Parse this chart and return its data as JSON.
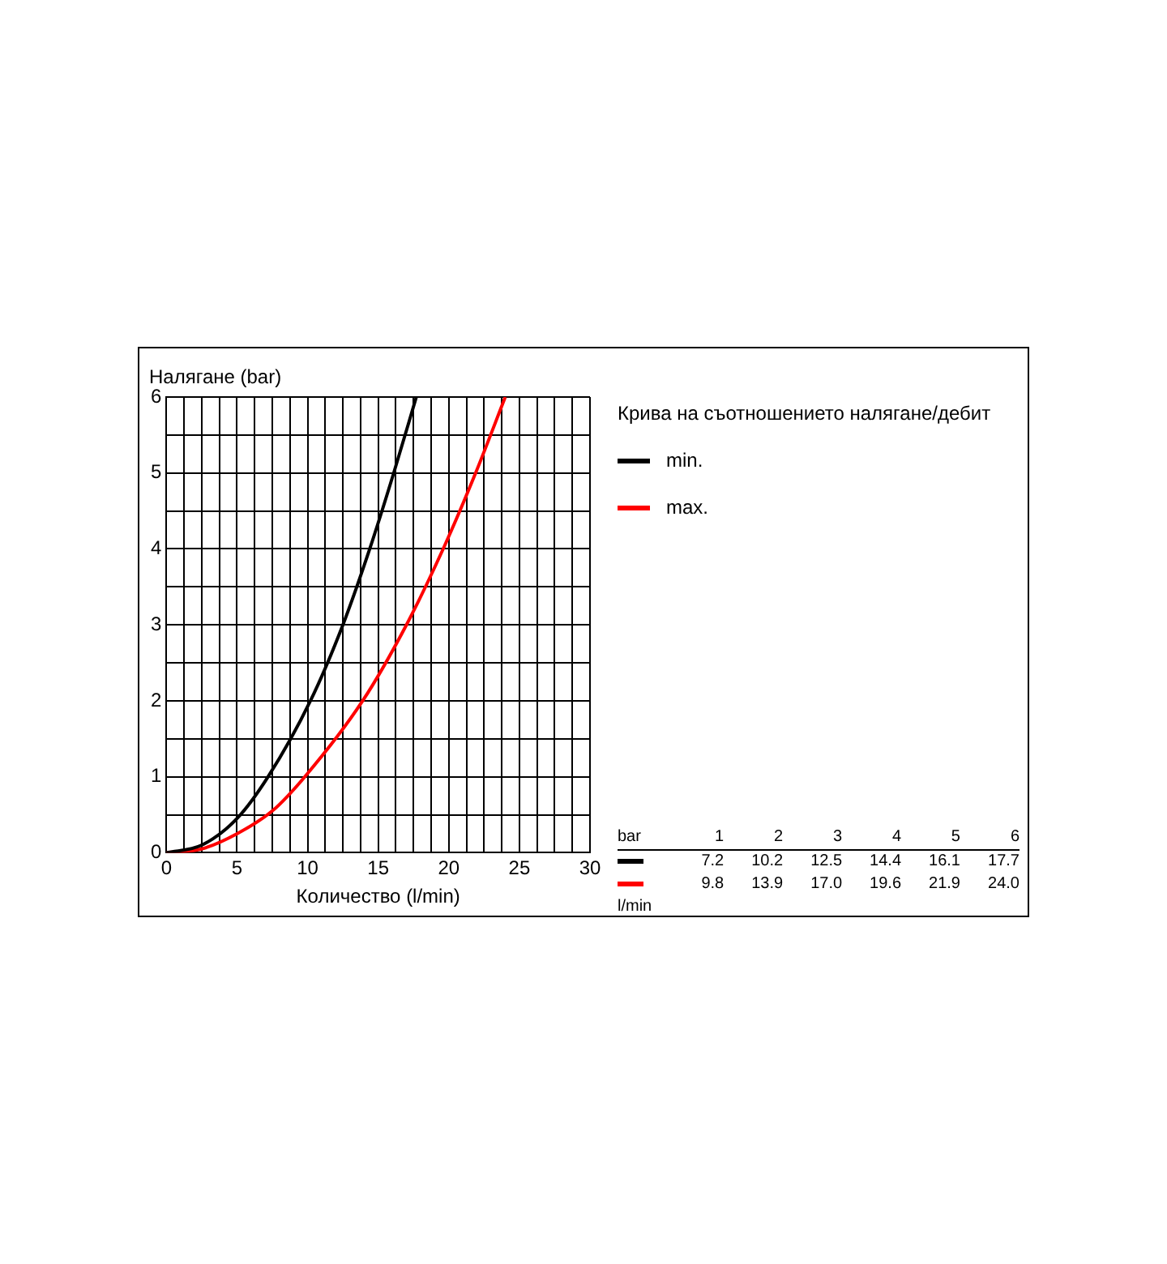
{
  "chart_data": {
    "type": "line",
    "xlabel": "Количество (l/min)",
    "ylabel": "Налягане (bar)",
    "legend_title": "Крива на съотношението налягане/дебит",
    "legend": "right",
    "grid": true,
    "marker": "none",
    "line_style": "solid",
    "annotations": [
      "bar",
      "1",
      "2",
      "3",
      "4",
      "5",
      "6",
      "7.2",
      "10.2",
      "12.5",
      "14.4",
      "16.1",
      "17.7",
      "9.8",
      "13.9",
      "17.0",
      "19.6",
      "21.9",
      "24.0",
      "l/min"
    ],
    "xlim": [
      0,
      30
    ],
    "xticks": [
      0,
      {
        "value": 1.25,
        "label": null
      },
      {
        "value": 2.5,
        "label": null
      },
      {
        "value": 3.75,
        "label": null
      },
      5,
      {
        "value": 6.25,
        "label": null
      },
      {
        "value": 7.5,
        "label": null
      },
      {
        "value": 8.75,
        "label": null
      },
      10,
      {
        "value": 11.25,
        "label": null
      },
      {
        "value": 12.5,
        "label": null
      },
      {
        "value": 13.75,
        "label": null
      },
      15,
      {
        "value": 16.25,
        "label": null
      },
      {
        "value": 17.5,
        "label": null
      },
      {
        "value": 18.75,
        "label": null
      },
      20,
      {
        "value": 21.25,
        "label": null
      },
      {
        "value": 22.5,
        "label": null
      },
      {
        "value": 23.75,
        "label": null
      },
      25,
      {
        "value": 26.25,
        "label": null
      },
      {
        "value": 27.5,
        "label": null
      },
      {
        "value": 28.75,
        "label": null
      },
      30
    ],
    "ylim": [
      0,
      6
    ],
    "yticks": [
      0,
      {
        "value": 0.5,
        "label": null
      },
      1,
      {
        "value": 1.5,
        "label": null
      },
      2,
      {
        "value": 2.5,
        "label": null
      },
      3,
      {
        "value": 3.5,
        "label": null
      },
      4,
      {
        "value": 4.5,
        "label": null
      },
      5,
      {
        "value": 5.5,
        "label": null
      },
      6
    ],
    "series": [
      {
        "name": "min.",
        "color": "#000000",
        "x": [
          0,
          2.5,
          5,
          7.2,
          10.2,
          12.5,
          14.4,
          16.1,
          17.7
        ],
        "values": [
          0,
          0.1,
          0.45,
          1,
          2,
          3,
          4,
          5,
          6
        ]
      },
      {
        "name": "max.",
        "color": "#ff0000",
        "x": [
          0,
          2.5,
          5,
          7.5,
          9.8,
          13.9,
          17.0,
          19.6,
          21.9,
          24.0
        ],
        "values": [
          0,
          0.05,
          0.25,
          0.55,
          1,
          2,
          3,
          4,
          5,
          6
        ]
      }
    ]
  }
}
